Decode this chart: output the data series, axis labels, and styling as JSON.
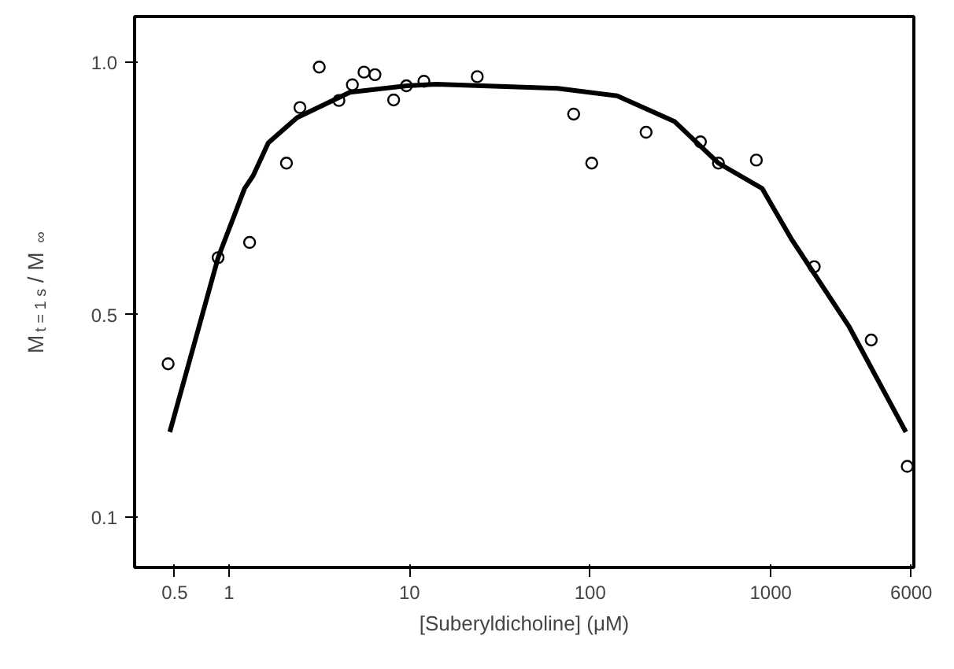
{
  "chart_data": {
    "type": "scatter",
    "xlabel": "[Suberyldicholine] (μM)",
    "ylabel": "M$_{t = 1 s}$ / M$_{∞}$",
    "log": "x",
    "grid": false,
    "xlim": [
      0.3,
      6200
    ],
    "ylim": [
      0,
      1.09
    ],
    "xticks": [
      0.5,
      1,
      10,
      100,
      1000,
      6000
    ],
    "yticks": [
      0.1,
      0.5,
      {
        "value": 1.0,
        "label": "1.0"
      }
    ],
    "series": [
      {
        "marker": "circle",
        "color": "#000000",
        "x": [
          0.46,
          0.87,
          1.3,
          2.08,
          2.47,
          3.16,
          4.06,
          4.82,
          5.59,
          6.43,
          8.16,
          9.6,
          12.0,
          23.7,
          81,
          102,
          204,
          408,
          513,
          832,
          1740,
          3600,
          5700
        ],
        "values": [
          0.403,
          0.613,
          0.643,
          0.8,
          0.91,
          0.99,
          0.924,
          0.955,
          0.98,
          0.975,
          0.925,
          0.953,
          0.962,
          0.971,
          0.897,
          0.8,
          0.861,
          0.842,
          0.8,
          0.806,
          0.595,
          0.45,
          0.2
        ]
      },
      {
        "type": "line",
        "marker": "none",
        "line_style": "solid",
        "color": "#000000",
        "x": [
          0.47,
          0.87,
          1.22,
          1.36,
          1.65,
          2.38,
          4.67,
          9.7,
          14,
          66,
          141,
          294,
          513,
          895,
          1300,
          2700,
          5600
        ],
        "values": [
          0.268,
          0.613,
          0.75,
          0.775,
          0.84,
          0.89,
          0.94,
          0.953,
          0.956,
          0.948,
          0.933,
          0.882,
          0.8,
          0.75,
          0.65,
          0.478,
          0.268
        ]
      }
    ]
  }
}
